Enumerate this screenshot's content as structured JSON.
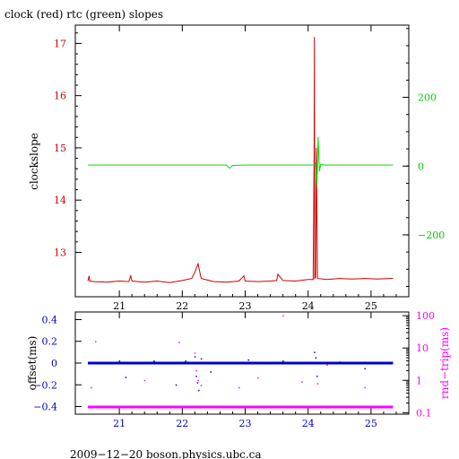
{
  "chart_data": [
    {
      "type": "line",
      "title": "clock (red) rtc (green) slopes",
      "ylabel": "clockslope",
      "xlim": [
        20.3,
        25.6
      ],
      "ylim": [
        12.15,
        17.35
      ],
      "y2lim": [
        -380,
        410
      ],
      "x_ticks": [
        21,
        22,
        23,
        24,
        25
      ],
      "y_ticks": [
        13,
        14,
        15,
        16,
        17
      ],
      "y2_ticks": [
        -200,
        0,
        200
      ],
      "y2_tick_labels": [
        "−200",
        "0",
        "200"
      ],
      "grid": false,
      "legend": "none",
      "colors": {
        "clock": "#cc0000",
        "rtc": "#00dd00",
        "axis": "#000000",
        "tick_text": "#cc0000",
        "y2_tick_text": "#00cc00"
      },
      "series": [
        {
          "name": "clock",
          "axis": "left",
          "x": [
            20.5,
            20.52,
            20.53,
            20.6,
            20.8,
            21.0,
            21.15,
            21.18,
            21.2,
            21.4,
            21.6,
            21.8,
            22.0,
            22.15,
            22.2,
            22.25,
            22.3,
            22.4,
            22.5,
            22.7,
            22.9,
            22.98,
            23.0,
            23.2,
            23.4,
            23.5,
            23.52,
            23.6,
            23.8,
            24.0,
            24.08,
            24.095,
            24.1,
            24.105,
            24.12,
            24.13,
            24.15,
            24.3,
            24.5,
            24.7,
            24.9,
            25.1,
            25.3,
            25.35
          ],
          "y": [
            12.45,
            12.55,
            12.45,
            12.44,
            12.43,
            12.45,
            12.44,
            12.55,
            12.45,
            12.43,
            12.45,
            12.42,
            12.46,
            12.5,
            12.62,
            12.78,
            12.5,
            12.47,
            12.44,
            12.43,
            12.45,
            12.55,
            12.45,
            12.44,
            12.45,
            12.46,
            12.58,
            12.46,
            12.45,
            12.48,
            12.48,
            14.85,
            17.12,
            12.5,
            12.52,
            15.0,
            12.5,
            12.48,
            12.5,
            12.49,
            12.5,
            12.49,
            12.5,
            12.5
          ]
        },
        {
          "name": "rtc",
          "axis": "right",
          "x": [
            20.5,
            21.0,
            21.5,
            22.0,
            22.5,
            22.7,
            22.75,
            22.8,
            23.0,
            23.5,
            24.0,
            24.1,
            24.12,
            24.14,
            24.16,
            24.18,
            24.2,
            24.3,
            24.5,
            25.0,
            25.35
          ],
          "y": [
            3,
            3,
            3,
            3,
            3,
            3,
            -6,
            2,
            3,
            3,
            3,
            3,
            8,
            -60,
            85,
            -15,
            4,
            3,
            3,
            3,
            3
          ]
        }
      ]
    },
    {
      "type": "scatter",
      "ylabel": "offset(ms)",
      "y2label": "rnd−trip(ms)",
      "xlim": [
        20.3,
        25.6
      ],
      "ylim": [
        -0.47,
        0.47
      ],
      "y2_log": true,
      "y2lim": [
        0.09,
        130
      ],
      "x_ticks": [
        21,
        22,
        23,
        24,
        25
      ],
      "y_ticks": [
        -0.4,
        -0.2,
        0,
        0.2,
        0.4
      ],
      "y_tick_labels": [
        "−0.4",
        "−0.2",
        "0",
        "0.2",
        "0.4"
      ],
      "y2_ticks": [
        0.1,
        1,
        10,
        100
      ],
      "grid": false,
      "legend": "none",
      "colors": {
        "offset": "#0000cc",
        "rndtrip": "#ff00ff",
        "axis": "#000000",
        "tick_text": "#0000cc",
        "y2_tick_text": "#ff00ff"
      },
      "series": [
        {
          "name": "offset",
          "axis": "left",
          "baseline": 0.0,
          "x_range": [
            20.5,
            25.35
          ],
          "outliers": {
            "x": [
              21.0,
              21.1,
              21.55,
              21.9,
              22.05,
              22.2,
              22.22,
              22.24,
              22.26,
              22.3,
              22.45,
              23.05,
              23.6,
              24.1,
              24.12,
              24.14,
              24.5,
              24.9
            ],
            "y": [
              0.02,
              -0.13,
              0.02,
              -0.2,
              0.02,
              0.06,
              -0.12,
              -0.18,
              -0.25,
              0.04,
              -0.08,
              0.03,
              0.02,
              0.1,
              0.05,
              -0.12,
              0.01,
              -0.05
            ]
          }
        },
        {
          "name": "rndtrip",
          "axis": "right",
          "baseline": 0.15,
          "x_range": [
            20.5,
            25.35
          ],
          "outliers": {
            "x": [
              20.55,
              20.62,
              21.4,
              21.95,
              22.2,
              22.22,
              22.25,
              22.3,
              22.9,
              23.2,
              23.6,
              23.9,
              24.15,
              24.3,
              24.9
            ],
            "y": [
              0.6,
              16,
              1.0,
              15,
              7,
              2.0,
              1.0,
              0.7,
              0.6,
              1.2,
              100,
              0.9,
              0.8,
              3.0,
              0.6
            ]
          }
        }
      ]
    }
  ],
  "footer": "2009−12−20  boson.physics.ubc.ca"
}
